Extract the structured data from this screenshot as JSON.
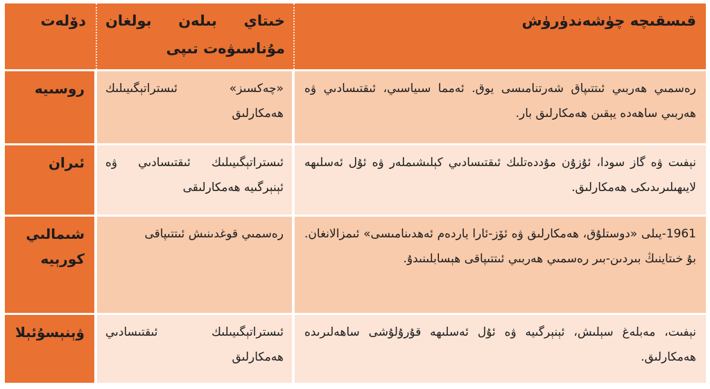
{
  "colors": {
    "accent_orange": "#E97132",
    "band_dark": "#F8CBAD",
    "band_light": "#FCE4D6",
    "divider": "#FFFFFF",
    "text": "#1A1A1A"
  },
  "table": {
    "direction": "rtl",
    "header": {
      "description": "قىسقىچە چۈشەندۈرۈش",
      "relation": "خىتاي بىلەن بولغان مۇناسىۋەت تىپى",
      "country": "دۆلەت"
    },
    "rows": [
      {
        "country": "روسىيە",
        "relation": "«چەكسىز» ئىستراتېگىيىلىك ھەمكارلىق",
        "description": "رەسمىي ھەربىي ئىتتىپاق شەرتنامىسى يوق. ئەمما سىياسىي، ئىقتىسادىي ۋە ھەربىي ساھەدە يېقىن ھەمكارلىق بار."
      },
      {
        "country": "ئىران",
        "relation": "ئىستراتېگىيىلىك ئىقتىسادىي ۋە ئېنېرگىيە ھەمكارلىقى",
        "description": "نېفىت ۋە گاز سودا، ئۇزۇن مۇددەتلىك ئىقتىسادىي كېلىشىملەر ۋە ئۇل ئەسلىھە لايىھىلىرىدىكى ھەمكارلىق."
      },
      {
        "country": "شىمالىي كورېيە",
        "relation": "رەسمىي قوغدىنىش ئىتتىپاقى",
        "description": "1961-يىلى «دوستلۇق، ھەمكارلىق ۋە ئۆز-ئارا ياردەم ئەھدىنامىسى» ئىمزالانغان. بۇ خىتاينىڭ بىردىن-بىر رەسمىي ھەربىي ئىتتىپاقى ھېسابلىنىدۇ."
      },
      {
        "country": "ۋېنېسۇئېلا",
        "relation": "ئىستراتېگىيىلىك ئىقتىسادىي ھەمكارلىق",
        "description": "نېفىت، مەبلەغ سېلىش، ئېنېرگىيە ۋە ئۇل ئەسلىھە قۇرۇلۇشى ساھەلىرىدە ھەمكارلىق."
      }
    ]
  }
}
